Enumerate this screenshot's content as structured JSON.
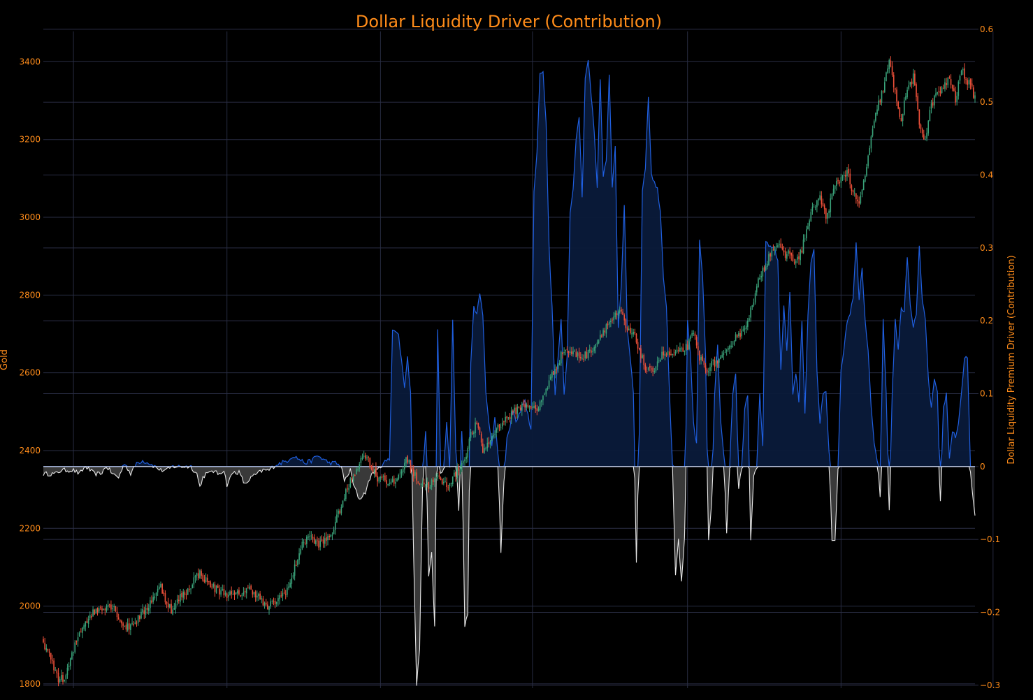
{
  "colors": {
    "background": "#000000",
    "title": "#ff8c1a",
    "tick": "#ff8c1a",
    "grid": "#2a2e45",
    "vgrid": "#272b40",
    "positive_line": "#1f5fe0",
    "positive_fill": "#0a1a3a",
    "negative_line": "#e8e8e8",
    "negative_fill": "#3c3c3c",
    "candle_up": "#3aa37a",
    "candle_down": "#f0513a"
  },
  "chart_data": {
    "type": "candlestick+area",
    "title": "Dollar Liquidity Driver (Contribution)",
    "y_left": {
      "label": "Gold",
      "range": [
        1789,
        3478
      ],
      "ticks": [
        1800,
        2000,
        2200,
        2400,
        2600,
        2800,
        3000,
        3200,
        3400
      ]
    },
    "y_right": {
      "label": "Dollar Liquidity Premium Driver (Contribution)",
      "range": [
        -0.304,
        0.597
      ],
      "ticks": [
        -0.3,
        -0.2,
        -0.1,
        0,
        0.1,
        0.2,
        0.3,
        0.4,
        0.5,
        0.6
      ],
      "tick_labels": [
        "−0.3",
        "−0.2",
        "−0.1",
        "0",
        "0.1",
        "0.2",
        "0.3",
        "0.4",
        "0.5",
        "0.6"
      ]
    },
    "x": {
      "count": 620,
      "tick_labels_visible": false,
      "vertical_grid_positions": [
        20,
        122,
        224,
        325,
        428,
        530,
        631
      ]
    },
    "gold_anchors": [
      [
        0,
        1910
      ],
      [
        4,
        1870
      ],
      [
        10,
        1815
      ],
      [
        14,
        1810
      ],
      [
        18,
        1860
      ],
      [
        22,
        1910
      ],
      [
        26,
        1950
      ],
      [
        32,
        1980
      ],
      [
        38,
        1995
      ],
      [
        44,
        2005
      ],
      [
        48,
        1990
      ],
      [
        52,
        1955
      ],
      [
        56,
        1945
      ],
      [
        62,
        1965
      ],
      [
        68,
        1990
      ],
      [
        74,
        2030
      ],
      [
        78,
        2050
      ],
      [
        82,
        2010
      ],
      [
        86,
        1985
      ],
      [
        90,
        2020
      ],
      [
        96,
        2040
      ],
      [
        100,
        2070
      ],
      [
        104,
        2085
      ],
      [
        108,
        2065
      ],
      [
        114,
        2045
      ],
      [
        120,
        2035
      ],
      [
        126,
        2025
      ],
      [
        132,
        2035
      ],
      [
        138,
        2045
      ],
      [
        144,
        2020
      ],
      [
        148,
        1995
      ],
      [
        152,
        2005
      ],
      [
        158,
        2025
      ],
      [
        164,
        2055
      ],
      [
        170,
        2140
      ],
      [
        176,
        2185
      ],
      [
        180,
        2165
      ],
      [
        184,
        2160
      ],
      [
        188,
        2170
      ],
      [
        192,
        2190
      ],
      [
        198,
        2260
      ],
      [
        204,
        2320
      ],
      [
        210,
        2370
      ],
      [
        214,
        2390
      ],
      [
        218,
        2360
      ],
      [
        222,
        2330
      ],
      [
        226,
        2335
      ],
      [
        230,
        2310
      ],
      [
        234,
        2320
      ],
      [
        238,
        2350
      ],
      [
        242,
        2380
      ],
      [
        246,
        2340
      ],
      [
        250,
        2320
      ],
      [
        256,
        2310
      ],
      [
        262,
        2330
      ],
      [
        268,
        2310
      ],
      [
        274,
        2340
      ],
      [
        280,
        2380
      ],
      [
        284,
        2440
      ],
      [
        288,
        2470
      ],
      [
        292,
        2400
      ],
      [
        296,
        2420
      ],
      [
        300,
        2450
      ],
      [
        304,
        2470
      ],
      [
        310,
        2490
      ],
      [
        316,
        2510
      ],
      [
        322,
        2520
      ],
      [
        328,
        2500
      ],
      [
        334,
        2560
      ],
      [
        340,
        2610
      ],
      [
        346,
        2660
      ],
      [
        352,
        2650
      ],
      [
        358,
        2640
      ],
      [
        362,
        2650
      ],
      [
        368,
        2680
      ],
      [
        372,
        2710
      ],
      [
        376,
        2730
      ],
      [
        380,
        2745
      ],
      [
        384,
        2755
      ],
      [
        388,
        2705
      ],
      [
        392,
        2700
      ],
      [
        396,
        2660
      ],
      [
        400,
        2610
      ],
      [
        404,
        2600
      ],
      [
        408,
        2630
      ],
      [
        412,
        2650
      ],
      [
        418,
        2645
      ],
      [
        424,
        2655
      ],
      [
        428,
        2670
      ],
      [
        432,
        2700
      ],
      [
        436,
        2640
      ],
      [
        440,
        2610
      ],
      [
        444,
        2620
      ],
      [
        448,
        2630
      ],
      [
        452,
        2640
      ],
      [
        456,
        2660
      ],
      [
        460,
        2700
      ],
      [
        464,
        2700
      ],
      [
        468,
        2740
      ],
      [
        472,
        2780
      ],
      [
        476,
        2850
      ],
      [
        480,
        2880
      ],
      [
        484,
        2920
      ],
      [
        488,
        2930
      ],
      [
        492,
        2900
      ],
      [
        496,
        2910
      ],
      [
        500,
        2880
      ],
      [
        504,
        2920
      ],
      [
        508,
        2980
      ],
      [
        512,
        3030
      ],
      [
        516,
        3050
      ],
      [
        520,
        3000
      ],
      [
        526,
        3080
      ],
      [
        530,
        3100
      ],
      [
        534,
        3120
      ],
      [
        538,
        3060
      ],
      [
        542,
        3030
      ],
      [
        546,
        3110
      ],
      [
        550,
        3200
      ],
      [
        554,
        3280
      ],
      [
        558,
        3330
      ],
      [
        562,
        3400
      ],
      [
        566,
        3320
      ],
      [
        570,
        3250
      ],
      [
        574,
        3330
      ],
      [
        578,
        3360
      ],
      [
        582,
        3240
      ],
      [
        586,
        3200
      ],
      [
        590,
        3290
      ],
      [
        594,
        3320
      ],
      [
        598,
        3330
      ],
      [
        602,
        3360
      ],
      [
        606,
        3300
      ],
      [
        610,
        3380
      ],
      [
        614,
        3350
      ],
      [
        619,
        3310
      ]
    ],
    "contrib_anchors": [
      [
        0,
        -0.01
      ],
      [
        4,
        -0.01
      ],
      [
        8,
        -0.01
      ],
      [
        12,
        -0.005
      ],
      [
        16,
        -0.005
      ],
      [
        20,
        -0.005
      ],
      [
        24,
        -0.01
      ],
      [
        28,
        0.0
      ],
      [
        34,
        -0.01
      ],
      [
        38,
        -0.01
      ],
      [
        42,
        0.0
      ],
      [
        46,
        -0.01
      ],
      [
        50,
        -0.015
      ],
      [
        54,
        0.005
      ],
      [
        58,
        -0.01
      ],
      [
        62,
        0.005
      ],
      [
        66,
        0.008
      ],
      [
        70,
        0.005
      ],
      [
        74,
        0.0
      ],
      [
        78,
        -0.005
      ],
      [
        82,
        -0.005
      ],
      [
        86,
        0.0
      ],
      [
        90,
        0.0
      ],
      [
        94,
        0.0
      ],
      [
        98,
        0.0
      ],
      [
        102,
        -0.01
      ],
      [
        104,
        -0.028
      ],
      [
        106,
        -0.015
      ],
      [
        108,
        -0.01
      ],
      [
        110,
        -0.01
      ],
      [
        112,
        -0.005
      ],
      [
        116,
        -0.01
      ],
      [
        120,
        -0.005
      ],
      [
        122,
        -0.025
      ],
      [
        126,
        -0.008
      ],
      [
        130,
        -0.008
      ],
      [
        134,
        -0.025
      ],
      [
        138,
        -0.015
      ],
      [
        142,
        -0.01
      ],
      [
        146,
        -0.005
      ],
      [
        150,
        -0.005
      ],
      [
        154,
        0.002
      ],
      [
        158,
        0.005
      ],
      [
        162,
        0.008
      ],
      [
        166,
        0.015
      ],
      [
        170,
        0.01
      ],
      [
        174,
        0.005
      ],
      [
        178,
        0.008
      ],
      [
        182,
        0.015
      ],
      [
        186,
        0.01
      ],
      [
        190,
        0.005
      ],
      [
        194,
        0.005
      ],
      [
        198,
        0.0
      ],
      [
        200,
        -0.02
      ],
      [
        204,
        -0.005
      ],
      [
        206,
        -0.025
      ],
      [
        210,
        -0.045
      ],
      [
        214,
        -0.035
      ],
      [
        218,
        -0.01
      ],
      [
        222,
        -0.005
      ],
      [
        226,
        0.005
      ],
      [
        230,
        0.01
      ],
      [
        232,
        0.19
      ],
      [
        236,
        0.18
      ],
      [
        240,
        0.11
      ],
      [
        242,
        0.15
      ],
      [
        244,
        0.1
      ],
      [
        246,
        -0.12
      ],
      [
        248,
        -0.3
      ],
      [
        250,
        -0.25
      ],
      [
        252,
        -0.02
      ],
      [
        254,
        0.05
      ],
      [
        256,
        -0.15
      ],
      [
        258,
        -0.12
      ],
      [
        260,
        -0.22
      ],
      [
        262,
        0.19
      ],
      [
        264,
        -0.01
      ],
      [
        266,
        0.0
      ],
      [
        268,
        0.06
      ],
      [
        270,
        0.0
      ],
      [
        272,
        0.2
      ],
      [
        274,
        0.02
      ],
      [
        276,
        -0.06
      ],
      [
        278,
        0.05
      ],
      [
        280,
        -0.22
      ],
      [
        282,
        -0.2
      ],
      [
        284,
        0.14
      ],
      [
        286,
        0.22
      ],
      [
        288,
        0.21
      ],
      [
        290,
        0.24
      ],
      [
        292,
        0.21
      ],
      [
        294,
        0.1
      ],
      [
        296,
        0.06
      ],
      [
        298,
        0.03
      ],
      [
        300,
        0.07
      ],
      [
        302,
        0.02
      ],
      [
        304,
        -0.12
      ],
      [
        306,
        -0.02
      ],
      [
        308,
        0.04
      ],
      [
        310,
        0.05
      ],
      [
        312,
        0.08
      ],
      [
        314,
        0.06
      ],
      [
        316,
        0.07
      ],
      [
        318,
        0.085
      ],
      [
        320,
        0.09
      ],
      [
        324,
        0.05
      ],
      [
        326,
        0.38
      ],
      [
        328,
        0.43
      ],
      [
        330,
        0.54
      ],
      [
        332,
        0.54
      ],
      [
        334,
        0.47
      ],
      [
        336,
        0.3
      ],
      [
        338,
        0.22
      ],
      [
        340,
        0.1
      ],
      [
        344,
        0.2
      ],
      [
        346,
        0.1
      ],
      [
        348,
        0.15
      ],
      [
        350,
        0.35
      ],
      [
        352,
        0.38
      ],
      [
        354,
        0.45
      ],
      [
        356,
        0.48
      ],
      [
        358,
        0.37
      ],
      [
        360,
        0.53
      ],
      [
        362,
        0.56
      ],
      [
        364,
        0.51
      ],
      [
        366,
        0.46
      ],
      [
        368,
        0.38
      ],
      [
        370,
        0.53
      ],
      [
        372,
        0.4
      ],
      [
        374,
        0.42
      ],
      [
        376,
        0.54
      ],
      [
        378,
        0.38
      ],
      [
        380,
        0.44
      ],
      [
        382,
        0.19
      ],
      [
        384,
        0.25
      ],
      [
        386,
        0.36
      ],
      [
        388,
        0.19
      ],
      [
        390,
        0.15
      ],
      [
        392,
        0.1
      ],
      [
        394,
        -0.13
      ],
      [
        396,
        0.05
      ],
      [
        398,
        0.38
      ],
      [
        400,
        0.41
      ],
      [
        402,
        0.51
      ],
      [
        404,
        0.4
      ],
      [
        406,
        0.39
      ],
      [
        408,
        0.38
      ],
      [
        410,
        0.35
      ],
      [
        412,
        0.26
      ],
      [
        414,
        0.22
      ],
      [
        416,
        0.1
      ],
      [
        418,
        0.0
      ],
      [
        420,
        -0.15
      ],
      [
        422,
        -0.1
      ],
      [
        424,
        -0.16
      ],
      [
        426,
        -0.1
      ],
      [
        428,
        0.2
      ],
      [
        430,
        0.15
      ],
      [
        432,
        0.06
      ],
      [
        434,
        0.03
      ],
      [
        436,
        0.31
      ],
      [
        438,
        0.26
      ],
      [
        440,
        0.15
      ],
      [
        442,
        -0.1
      ],
      [
        444,
        -0.05
      ],
      [
        446,
        0.1
      ],
      [
        448,
        0.17
      ],
      [
        450,
        0.06
      ],
      [
        452,
        0.02
      ],
      [
        454,
        -0.09
      ],
      [
        456,
        0.0
      ],
      [
        458,
        0.1
      ],
      [
        460,
        0.13
      ],
      [
        462,
        -0.03
      ],
      [
        464,
        0.0
      ],
      [
        466,
        0.08
      ],
      [
        468,
        0.1
      ],
      [
        470,
        -0.1
      ],
      [
        472,
        -0.01
      ],
      [
        474,
        0.0
      ],
      [
        476,
        0.1
      ],
      [
        478,
        0.03
      ],
      [
        480,
        0.31
      ],
      [
        482,
        0.3
      ],
      [
        484,
        0.3
      ],
      [
        486,
        0.3
      ],
      [
        488,
        0.28
      ],
      [
        490,
        0.13
      ],
      [
        492,
        0.22
      ],
      [
        494,
        0.16
      ],
      [
        496,
        0.24
      ],
      [
        498,
        0.1
      ],
      [
        500,
        0.13
      ],
      [
        502,
        0.09
      ],
      [
        504,
        0.2
      ],
      [
        506,
        0.07
      ],
      [
        508,
        0.21
      ],
      [
        510,
        0.28
      ],
      [
        512,
        0.3
      ],
      [
        514,
        0.13
      ],
      [
        516,
        0.06
      ],
      [
        518,
        0.1
      ],
      [
        520,
        0.1
      ],
      [
        522,
        0.02
      ],
      [
        524,
        -0.1
      ],
      [
        526,
        -0.1
      ],
      [
        528,
        0.0
      ],
      [
        530,
        0.13
      ],
      [
        532,
        0.16
      ],
      [
        534,
        0.2
      ],
      [
        536,
        0.21
      ],
      [
        538,
        0.23
      ],
      [
        540,
        0.31
      ],
      [
        542,
        0.23
      ],
      [
        544,
        0.27
      ],
      [
        546,
        0.2
      ],
      [
        548,
        0.16
      ],
      [
        550,
        0.08
      ],
      [
        552,
        0.03
      ],
      [
        554,
        0.01
      ],
      [
        556,
        -0.04
      ],
      [
        558,
        0.2
      ],
      [
        560,
        0.1
      ],
      [
        562,
        -0.06
      ],
      [
        564,
        0.1
      ],
      [
        566,
        0.2
      ],
      [
        568,
        0.16
      ],
      [
        570,
        0.22
      ],
      [
        572,
        0.21
      ],
      [
        574,
        0.29
      ],
      [
        576,
        0.22
      ],
      [
        578,
        0.19
      ],
      [
        580,
        0.21
      ],
      [
        582,
        0.3
      ],
      [
        584,
        0.23
      ],
      [
        586,
        0.2
      ],
      [
        588,
        0.12
      ],
      [
        590,
        0.08
      ],
      [
        592,
        0.12
      ],
      [
        594,
        0.1
      ],
      [
        596,
        -0.05
      ],
      [
        598,
        0.08
      ],
      [
        600,
        0.1
      ],
      [
        602,
        0.01
      ],
      [
        604,
        0.05
      ],
      [
        606,
        0.04
      ],
      [
        608,
        0.06
      ],
      [
        610,
        0.1
      ],
      [
        612,
        0.15
      ],
      [
        614,
        0.15
      ],
      [
        616,
        -0.01
      ],
      [
        618,
        -0.05
      ],
      [
        619,
        -0.07
      ]
    ]
  }
}
